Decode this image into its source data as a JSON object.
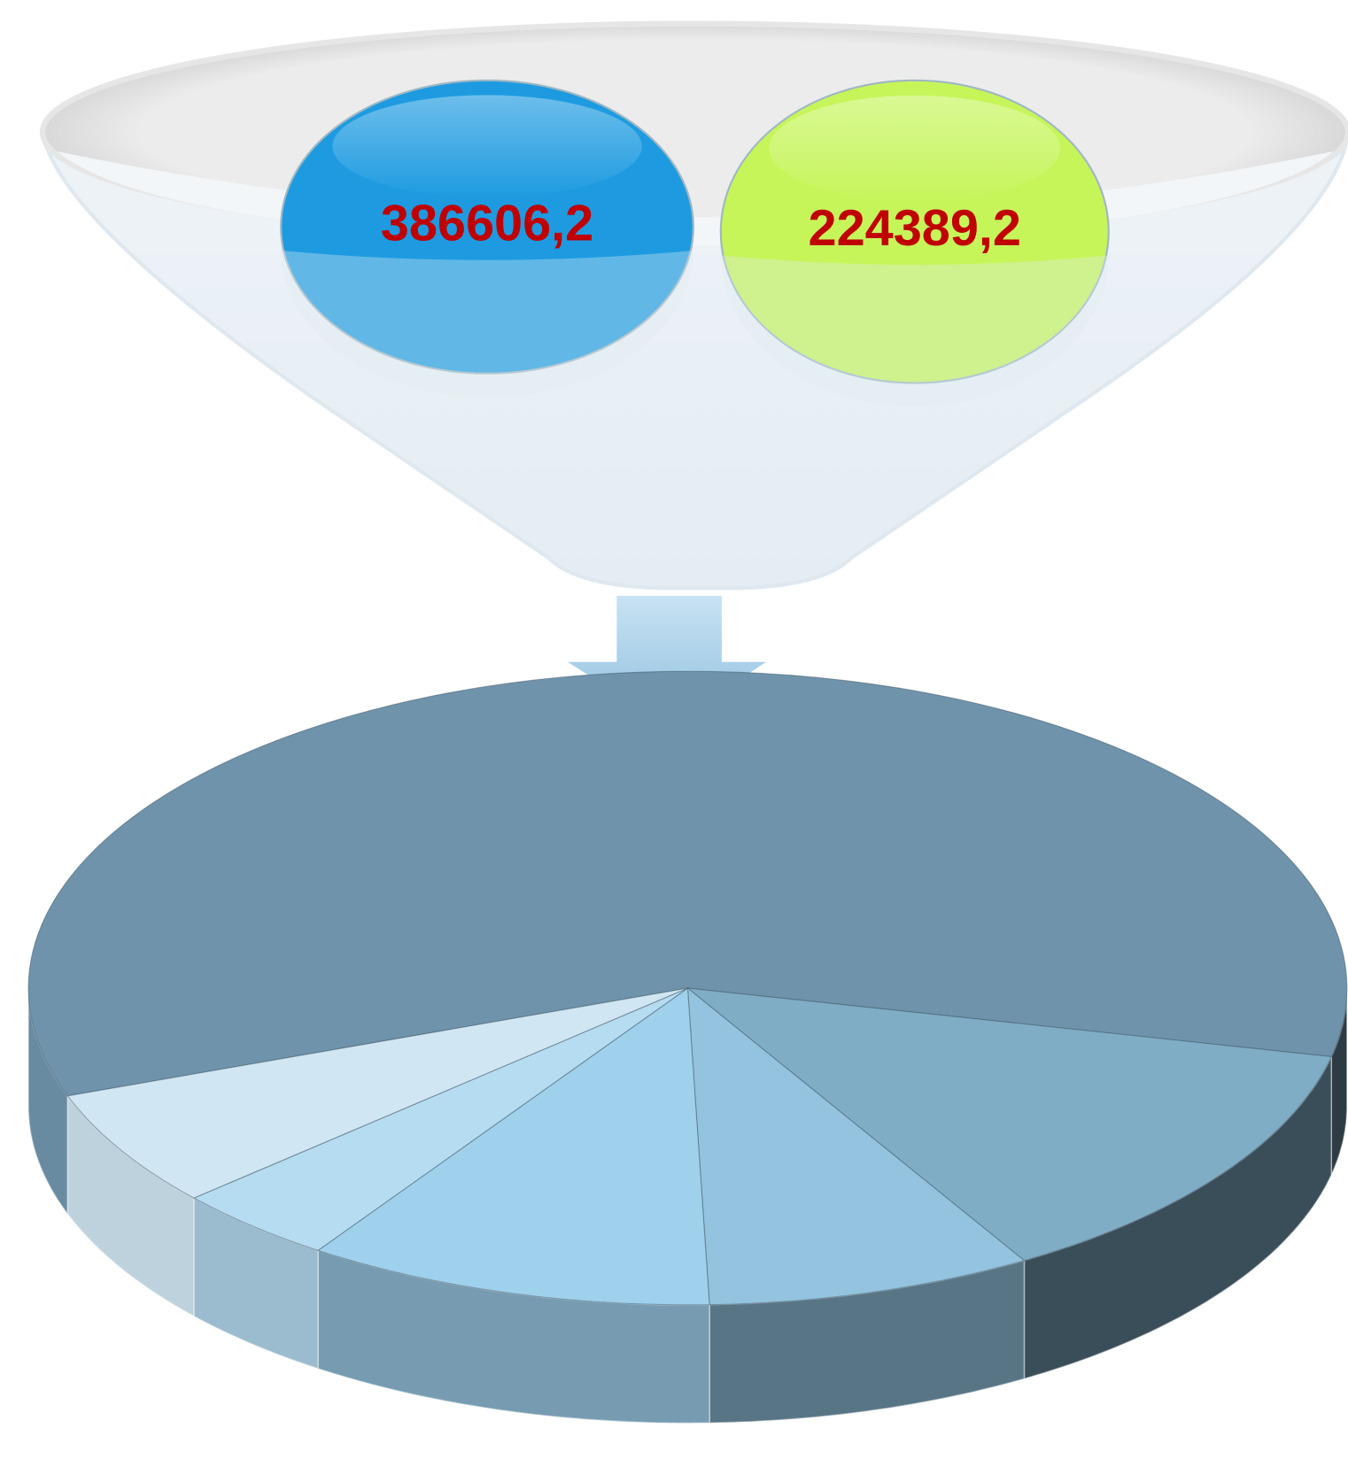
{
  "bubbles": [
    {
      "label": "386606,2",
      "color": "#1e9be0"
    },
    {
      "label": "224389,2",
      "color": "#c6f55a"
    }
  ],
  "chart_data": {
    "type": "pie",
    "values": [
      59,
      13,
      8,
      10,
      4,
      6
    ],
    "colors": [
      "#6f93aa",
      "#80adc6",
      "#93c3de",
      "#9fd0ec",
      "#b5dcf0",
      "#d0e6f2"
    ]
  }
}
